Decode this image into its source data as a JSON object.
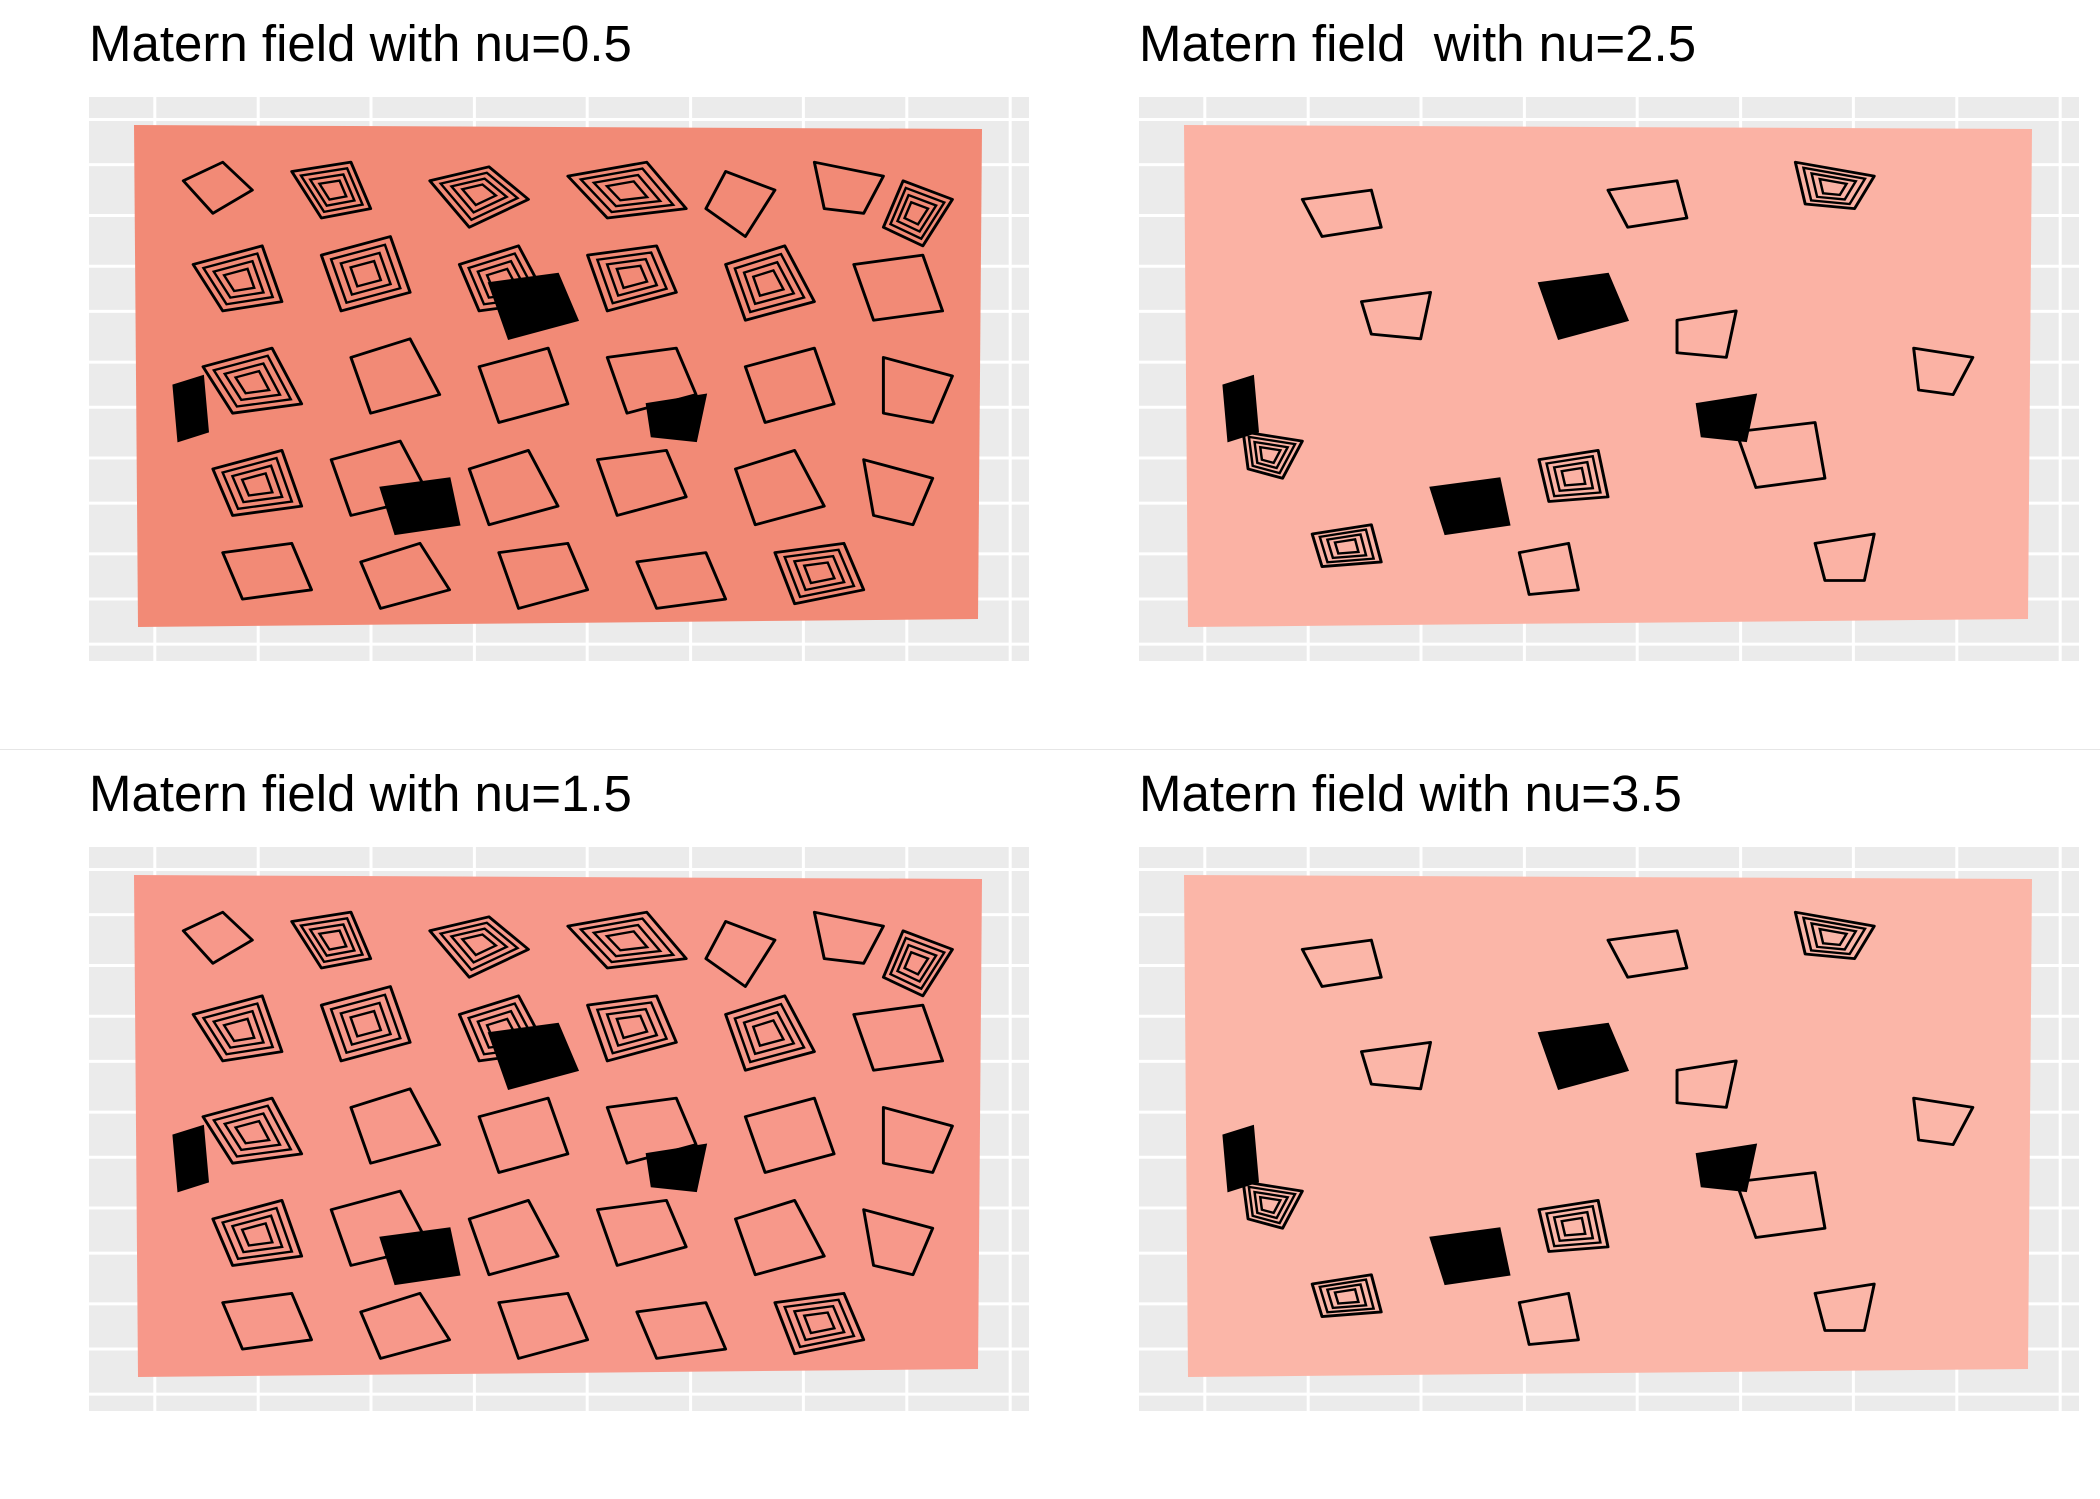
{
  "chart_data": [
    {
      "type": "heatmap",
      "title": "Matern field with nu=0.5",
      "fill_color": "#f28a76",
      "contour_color": "#000000",
      "panel_background": "#ebebeb",
      "grid": true,
      "xlabel": "",
      "ylabel": ""
    },
    {
      "type": "heatmap",
      "title": "Matern field  with nu=2.5",
      "fill_color": "#fbb2a4",
      "contour_color": "#000000",
      "panel_background": "#ebebeb",
      "grid": true,
      "xlabel": "",
      "ylabel": ""
    },
    {
      "type": "heatmap",
      "title": "Matern field with nu=1.5",
      "fill_color": "#f7988a",
      "contour_color": "#000000",
      "panel_background": "#ebebeb",
      "grid": true,
      "xlabel": "",
      "ylabel": ""
    },
    {
      "type": "heatmap",
      "title": "Matern field with nu=3.5",
      "fill_color": "#fbb6a8",
      "contour_color": "#000000",
      "panel_background": "#ebebeb",
      "grid": true,
      "xlabel": "",
      "ylabel": ""
    }
  ]
}
